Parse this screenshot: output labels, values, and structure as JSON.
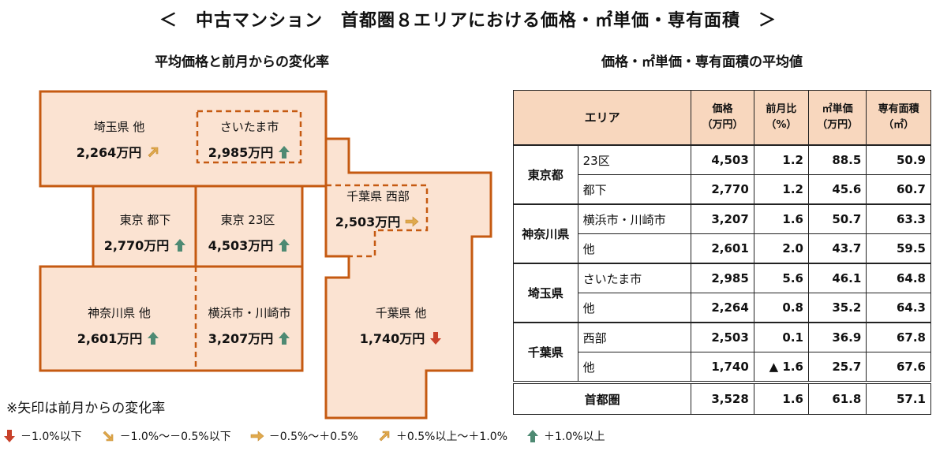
{
  "title": "＜　中古マンション　首都圏８エリアにおける価格・㎡単価・専有面積　＞",
  "map": {
    "subtitle": "平均価格と前月からの変化率",
    "regions": [
      {
        "id": "saitama-other",
        "label": "埼玉県 他",
        "price": "2,264万円",
        "arrow": "up-slight"
      },
      {
        "id": "saitama-city",
        "label": "さいたま市",
        "price": "2,985万円",
        "arrow": "up"
      },
      {
        "id": "tokyo-tokashita",
        "label": "東京 都下",
        "price": "2,770万円",
        "arrow": "up"
      },
      {
        "id": "tokyo-23",
        "label": "東京 23区",
        "price": "4,503万円",
        "arrow": "up"
      },
      {
        "id": "chiba-west",
        "label": "千葉県 西部",
        "price": "2,503万円",
        "arrow": "flat"
      },
      {
        "id": "kanagawa-other",
        "label": "神奈川県 他",
        "price": "2,601万円",
        "arrow": "up"
      },
      {
        "id": "yokohama-kawasaki",
        "label": "横浜市・川崎市",
        "price": "3,207万円",
        "arrow": "up"
      },
      {
        "id": "chiba-other",
        "label": "千葉県 他",
        "price": "1,740万円",
        "arrow": "down"
      }
    ]
  },
  "table": {
    "subtitle": "価格・㎡単価・専有面積の平均値",
    "headers": {
      "area": "エリア",
      "price": [
        "価格",
        "（万円）"
      ],
      "mom": [
        "前月比",
        "（%）"
      ],
      "unit_price": [
        "㎡単価",
        "（万円）"
      ],
      "floor_area": [
        "専有面積",
        "（㎡）"
      ]
    },
    "groups": [
      {
        "name": "東京都",
        "rows": [
          {
            "sub": "23区",
            "price": "4,503",
            "mom": "1.2",
            "unit": "88.5",
            "area": "50.9"
          },
          {
            "sub": "都下",
            "price": "2,770",
            "mom": "1.2",
            "unit": "45.6",
            "area": "60.7"
          }
        ]
      },
      {
        "name": "神奈川県",
        "rows": [
          {
            "sub": "横浜市・川崎市",
            "price": "3,207",
            "mom": "1.6",
            "unit": "50.7",
            "area": "63.3"
          },
          {
            "sub": "他",
            "price": "2,601",
            "mom": "2.0",
            "unit": "43.7",
            "area": "59.5"
          }
        ]
      },
      {
        "name": "埼玉県",
        "rows": [
          {
            "sub": "さいたま市",
            "price": "2,985",
            "mom": "5.6",
            "unit": "46.1",
            "area": "64.8"
          },
          {
            "sub": "他",
            "price": "2,264",
            "mom": "0.8",
            "unit": "35.2",
            "area": "64.3"
          }
        ]
      },
      {
        "name": "千葉県",
        "rows": [
          {
            "sub": "西部",
            "price": "2,503",
            "mom": "0.1",
            "unit": "36.9",
            "area": "67.8"
          },
          {
            "sub": "他",
            "price": "1,740",
            "mom": "▲ 1.6",
            "unit": "25.7",
            "area": "67.6"
          }
        ]
      }
    ],
    "total": {
      "label": "首都圏",
      "price": "3,528",
      "mom": "1.6",
      "unit": "61.8",
      "area": "57.1"
    }
  },
  "note": "※矢印は前月からの変化率",
  "legend": [
    {
      "arrow": "down",
      "label": "－1.0%以下"
    },
    {
      "arrow": "down-slight",
      "label": "－1.0%～－0.5%以下"
    },
    {
      "arrow": "flat",
      "label": "－0.5%～＋0.5%"
    },
    {
      "arrow": "up-slight",
      "label": "＋0.5%以上～＋1.0%"
    },
    {
      "arrow": "up",
      "label": "＋1.0%以上"
    }
  ],
  "colors": {
    "region_fill": "#fbe3d2",
    "region_border": "#c55a11",
    "arrow_up": "#4e8a73",
    "arrow_down": "#c8412b",
    "arrow_slight": "#e0a94d",
    "header_fill": "#f8d7be"
  }
}
